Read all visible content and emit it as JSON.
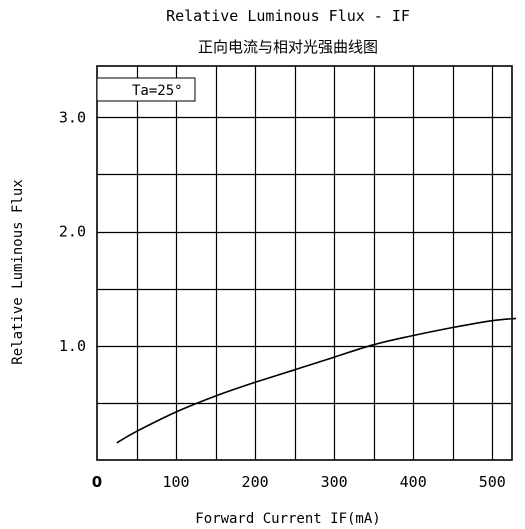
{
  "chart_data": {
    "type": "line",
    "title": "Relative Luminous Flux - IF",
    "subtitle": "正向电流与相对光强曲线图",
    "xlabel": "Forward Current IF(mA)",
    "ylabel": "Relative Luminous Flux",
    "annotation": "Ta=25°",
    "xlim": [
      0,
      525
    ],
    "ylim": [
      0,
      3.45
    ],
    "grid": true,
    "x_ticks": [
      {
        "value": 0,
        "label": "0"
      },
      {
        "value": 100,
        "label": "100"
      },
      {
        "value": 200,
        "label": "200"
      },
      {
        "value": 300,
        "label": "300"
      },
      {
        "value": 400,
        "label": "400"
      },
      {
        "value": 500,
        "label": "500"
      }
    ],
    "y_ticks": [
      {
        "value": 1.0,
        "label": "1.0"
      },
      {
        "value": 2.0,
        "label": "2.0"
      },
      {
        "value": 3.0,
        "label": "3.0"
      }
    ],
    "series": [
      {
        "x": [
          25,
          50,
          100,
          150,
          200,
          250,
          300,
          350,
          400,
          450,
          500,
          530
        ],
        "y": [
          0.15,
          0.25,
          0.42,
          0.56,
          0.68,
          0.79,
          0.9,
          1.01,
          1.09,
          1.16,
          1.22,
          1.24
        ]
      }
    ],
    "colors": {
      "line": "#000000",
      "grid": "#000000"
    }
  }
}
